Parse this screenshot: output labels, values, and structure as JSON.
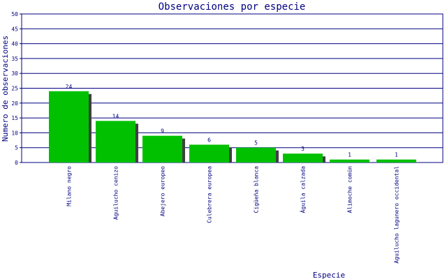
{
  "chart_data": {
    "type": "bar",
    "title": "Observaciones por especie",
    "xlabel": "Especie",
    "ylabel": "Numero de observaciones",
    "categories": [
      "Milano negro",
      "Aguilucho cenizo",
      "Abejero europeo",
      "Culebrera europea",
      "Cigüeña blanca",
      "Águila calzada",
      "Alimoche común",
      "Aguilucho lagunero occidental"
    ],
    "values": [
      24,
      14,
      9,
      6,
      5,
      3,
      1,
      1
    ],
    "ylim": [
      0,
      50
    ],
    "yticks": [
      "0",
      "5",
      "10",
      "15",
      "20",
      "25",
      "30",
      "35",
      "40",
      "45",
      "50"
    ],
    "grid": true,
    "colors": {
      "bar": "#00c000",
      "shadow": "#404040",
      "text": "#000080",
      "grid": "#000080"
    }
  }
}
